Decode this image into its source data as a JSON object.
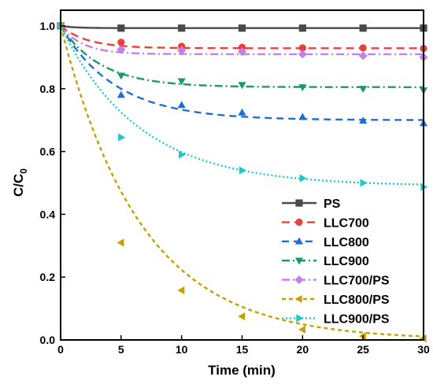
{
  "chart_data": {
    "type": "line",
    "title": "",
    "xlabel": "Time (min)",
    "ylabel_main": "C/C",
    "ylabel_sub": "0",
    "xlim": [
      0,
      30
    ],
    "ylim": [
      0,
      1.05
    ],
    "xticks": [
      0,
      5,
      10,
      15,
      20,
      25,
      30
    ],
    "yticks": [
      0.0,
      0.2,
      0.4,
      0.6,
      0.8,
      1.0
    ],
    "xtick_labels": [
      "0",
      "5",
      "10",
      "15",
      "20",
      "25",
      "30"
    ],
    "ytick_labels": [
      "0.0",
      "0.2",
      "0.4",
      "0.6",
      "0.8",
      "1.0"
    ],
    "grid": false,
    "legend_position": "bottom-right",
    "x": [
      0,
      5,
      10,
      15,
      20,
      25,
      30
    ],
    "series": [
      {
        "name": "PS",
        "color": "#4a4a4a",
        "marker": "square",
        "dash": "solid",
        "values": [
          1.0,
          0.993,
          0.993,
          0.993,
          0.993,
          0.993,
          0.993
        ],
        "fit": {
          "plateau": 0.993,
          "k": 0.8
        }
      },
      {
        "name": "LLC700",
        "color": "#e8413c",
        "marker": "circle",
        "dash": "dashed-long",
        "values": [
          1.0,
          0.948,
          0.935,
          0.932,
          0.93,
          0.93,
          0.928
        ],
        "fit": {
          "plateau": 0.929,
          "k": 0.45
        }
      },
      {
        "name": "LLC800",
        "color": "#1f6fd1",
        "marker": "triangle-up",
        "dash": "dashed",
        "values": [
          1.0,
          0.78,
          0.748,
          0.724,
          0.71,
          0.698,
          0.69
        ],
        "fit": {
          "plateau": 0.7,
          "k": 0.22
        }
      },
      {
        "name": "LLC900",
        "color": "#1a9a6a",
        "marker": "triangle-down",
        "dash": "dash-dot",
        "values": [
          1.0,
          0.842,
          0.824,
          0.812,
          0.805,
          0.8,
          0.795
        ],
        "fit": {
          "plateau": 0.805,
          "k": 0.3
        }
      },
      {
        "name": "LLC700/PS",
        "color": "#c77ee8",
        "marker": "diamond",
        "dash": "dash-dot",
        "values": [
          1.0,
          0.925,
          0.922,
          0.918,
          0.91,
          0.905,
          0.9
        ],
        "fit": {
          "plateau": 0.91,
          "k": 0.55
        }
      },
      {
        "name": "LLC800/PS",
        "color": "#c4a000",
        "marker": "triangle-left",
        "dash": "short-dashed",
        "values": [
          1.0,
          0.31,
          0.158,
          0.075,
          0.033,
          0.012,
          0.005
        ],
        "fit": {
          "plateau": 0.0,
          "k": 0.15
        }
      },
      {
        "name": "LLC900/PS",
        "color": "#1ec7cc",
        "marker": "triangle-right",
        "dash": "dotted",
        "values": [
          1.0,
          0.645,
          0.59,
          0.54,
          0.515,
          0.5,
          0.487
        ],
        "fit": {
          "plateau": 0.49,
          "k": 0.155
        }
      }
    ]
  }
}
